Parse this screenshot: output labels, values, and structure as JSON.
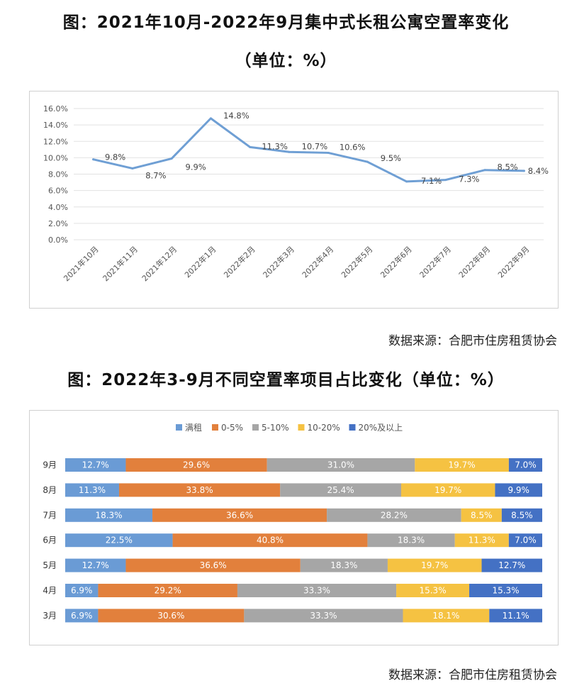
{
  "titles": {
    "chart1_line1": "图：2021年10月-2022年9月集中式长租公寓空置率变化",
    "chart1_line2": "（单位：%）",
    "chart2": "图：2022年3-9月不同空置率项目占比变化（单位：%）"
  },
  "sources": {
    "chart1": "数据来源：合肥市住房租赁协会",
    "chart2": "数据来源：合肥市住房租赁协会"
  },
  "chart_data": [
    {
      "type": "line",
      "categories": [
        "2021年10月",
        "2021年11月",
        "2021年12月",
        "2022年1月",
        "2022年2月",
        "2022年3月",
        "2022年4月",
        "2022年5月",
        "2022年6月",
        "2022年7月",
        "2022年8月",
        "2022年9月"
      ],
      "values": [
        9.8,
        8.7,
        9.9,
        14.8,
        11.3,
        10.7,
        10.6,
        9.5,
        7.1,
        7.3,
        8.5,
        8.4
      ],
      "data_labels": [
        "9.8%",
        "8.7%",
        "9.9%",
        "14.8%",
        "11.3%",
        "10.7%",
        "10.6%",
        "9.5%",
        "7.1%",
        "7.3%",
        "8.5%",
        "8.4%"
      ],
      "ylim": [
        0,
        16
      ],
      "yticks": [
        "0.0%",
        "2.0%",
        "4.0%",
        "6.0%",
        "8.0%",
        "10.0%",
        "12.0%",
        "14.0%",
        "16.0%"
      ],
      "grid": true,
      "color": "#6f9fd4"
    },
    {
      "type": "bar",
      "orientation": "horizontal-stacked",
      "categories": [
        "9月",
        "8月",
        "7月",
        "6月",
        "5月",
        "4月",
        "3月"
      ],
      "series": [
        {
          "name": "满租",
          "color": "#6a9bd5",
          "values": [
            12.7,
            11.3,
            18.3,
            22.5,
            12.7,
            6.9,
            6.9
          ]
        },
        {
          "name": "0-5%",
          "color": "#e2803c",
          "values": [
            29.6,
            33.8,
            36.6,
            40.8,
            36.6,
            29.2,
            30.6
          ]
        },
        {
          "name": "5-10%",
          "color": "#a6a6a6",
          "values": [
            31.0,
            25.4,
            28.2,
            18.3,
            18.3,
            33.3,
            33.3
          ]
        },
        {
          "name": "10-20%",
          "color": "#f5c242",
          "values": [
            19.7,
            19.7,
            8.5,
            11.3,
            19.7,
            15.3,
            18.1
          ]
        },
        {
          "name": "20%及以上",
          "color": "#4471c4",
          "values": [
            7.0,
            9.9,
            8.5,
            7.0,
            12.7,
            15.3,
            11.1
          ]
        }
      ],
      "legend_position": "top"
    }
  ]
}
